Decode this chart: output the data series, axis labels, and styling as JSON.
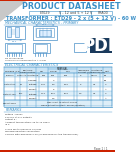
{
  "title": "PRODUCT DATASHEET",
  "title_color": "#3a8fc7",
  "background_color": "#ffffff",
  "header_col1": "ET029",
  "header_col2": "5 - 12 and 5 + 12 V",
  "header_col3": "FRA00",
  "header_label1": "",
  "header_label2": "",
  "header_label3": "",
  "subtitle": "TRANSFORMER : ETD29 - 2 x (5 + 12 V) - 60 W",
  "subtitle_color": "#3a8fc7",
  "section1": "MECHANICAL CHARACTERISTICS - PRIMARY",
  "section2": "ELECTRICAL CHARACTERISTICS",
  "section3": "REMARKS",
  "line_color": "#3a8fc7",
  "red_accent": "#cc2200",
  "draw_color": "#4a90c8",
  "page_label": "Page 1 / 1",
  "remarks_lines": [
    "Potting : epoxy",
    "120 mV at 5 V outputs",
    "Output 5 :",
    "Ambient temperature: 25 to 70 deg C",
    "IP 0",
    "",
    "Crimp pin tolerance is 0.5 mm",
    "Winding direction convention",
    "Comply with EN61558-2-16 (or EN61558 for the transformer)"
  ]
}
